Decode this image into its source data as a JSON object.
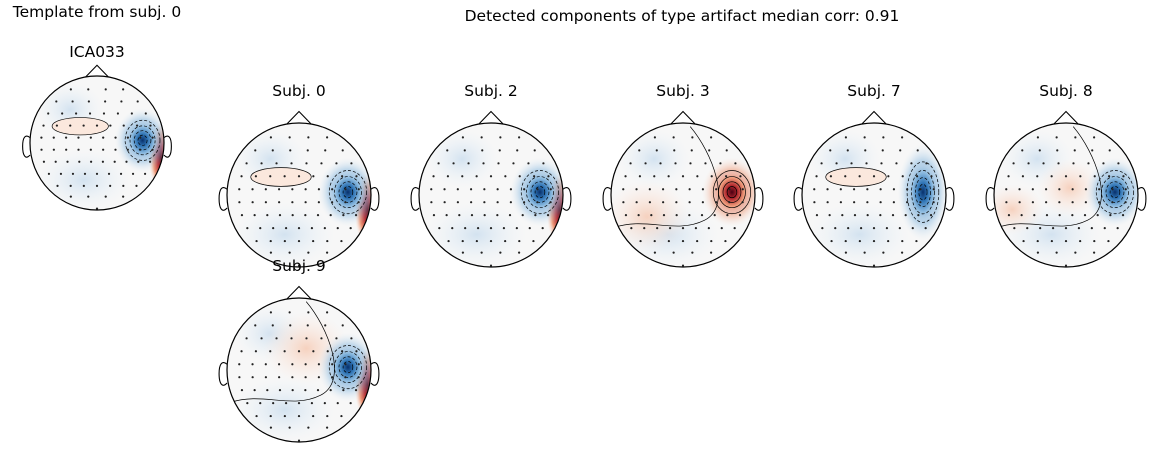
{
  "left_panel": {
    "title": "Template from subj. 0",
    "component_label": "ICA033"
  },
  "main_panel": {
    "title": "Detected components of type artifact median corr: 0.91"
  },
  "colors": {
    "negative_strong": "#0b3a73",
    "negative_mid": "#2f74b5",
    "negative_light": "#b9d3ea",
    "negative_faint": "#e6eff7",
    "neutral": "#f7f7f7",
    "positive_faint": "#fbe8dd",
    "positive_light": "#f2b79b",
    "positive_mid": "#c2403f",
    "positive_strong": "#67001f"
  },
  "topomaps": [
    {
      "label": "ICA033",
      "peak_sign": "negative",
      "group": "template"
    },
    {
      "label": "Subj. 0",
      "peak_sign": "negative",
      "group": "detected"
    },
    {
      "label": "Subj. 2",
      "peak_sign": "negative",
      "group": "detected"
    },
    {
      "label": "Subj. 3",
      "peak_sign": "positive",
      "group": "detected"
    },
    {
      "label": "Subj. 7",
      "peak_sign": "negative",
      "group": "detected"
    },
    {
      "label": "Subj. 8",
      "peak_sign": "negative",
      "group": "detected"
    },
    {
      "label": "Subj. 9",
      "peak_sign": "negative",
      "group": "detected"
    }
  ]
}
